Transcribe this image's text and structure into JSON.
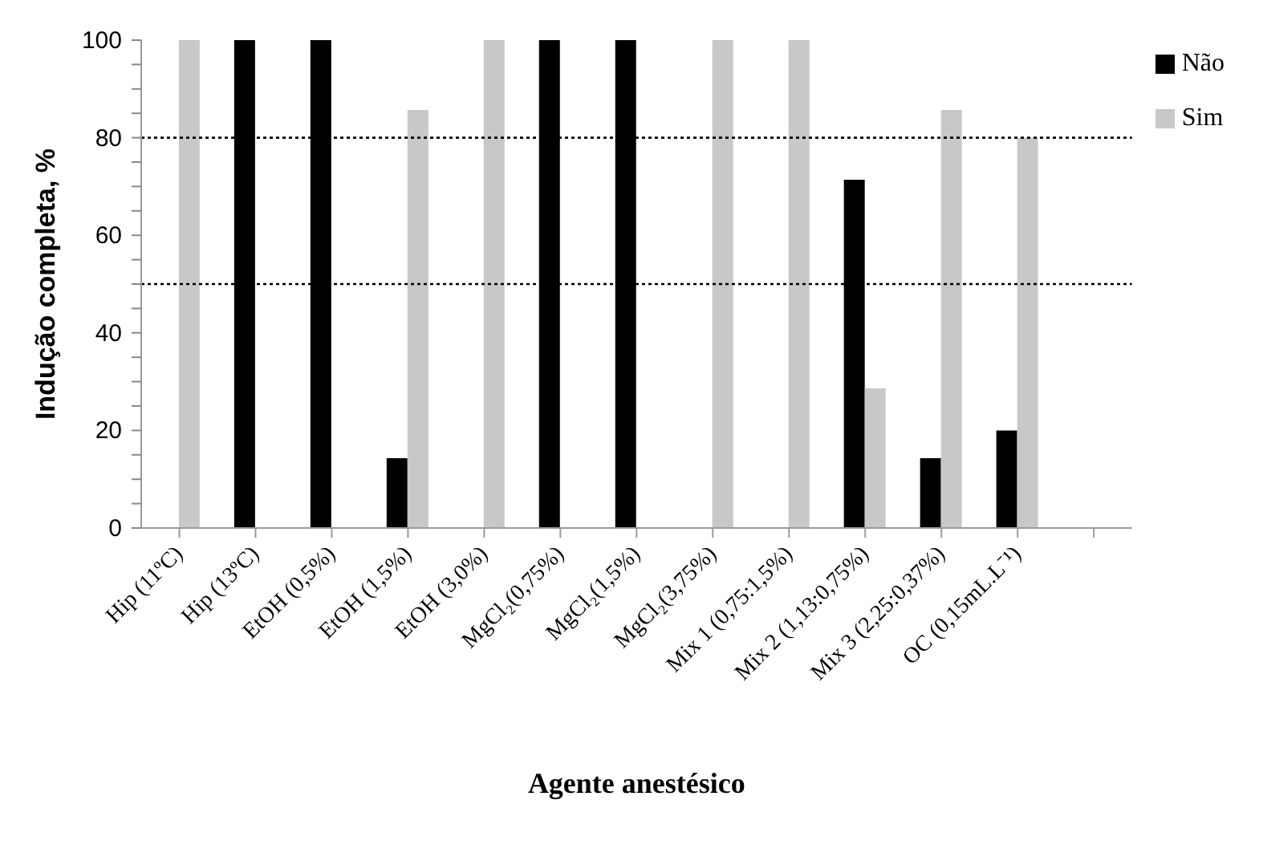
{
  "chart_data": {
    "type": "bar",
    "xlabel": "Agente anestésico",
    "ylabel": "Indução completa, %",
    "categories": [
      "Hip (11ºC)",
      "Hip (13ºC)",
      "EtOH (0,5%)",
      "EtOH (1,5%)",
      "EtOH (3,0%)",
      "MgCl₂(0,75%)",
      "MgCl₂(1,5%)",
      "MgCl₂(3,75%)",
      "Mix 1 (0,75:1,5%)",
      "Mix 2 (1,13:0,75%)",
      "Mix 3 (2,25:0,37%)",
      "OC (0,15mL.L⁻¹)",
      null
    ],
    "series": [
      {
        "name": "Não",
        "color": "#000000",
        "values": [
          0,
          100,
          100,
          14.3,
          0,
          100,
          100,
          0,
          0,
          71.4,
          14.3,
          20,
          null
        ]
      },
      {
        "name": "Sim",
        "color": "#c8c8c8",
        "values": [
          100,
          0,
          0,
          85.7,
          100,
          0,
          0,
          100,
          100,
          28.6,
          85.7,
          80,
          null
        ]
      }
    ],
    "ylim": [
      0,
      100
    ],
    "yticks": [
      0,
      {
        "value": 5,
        "label": null
      },
      {
        "value": 10,
        "label": null
      },
      {
        "value": 15,
        "label": null
      },
      20,
      {
        "value": 25,
        "label": null
      },
      {
        "value": 30,
        "label": null
      },
      {
        "value": 35,
        "label": null
      },
      40,
      {
        "value": 45,
        "label": null
      },
      {
        "value": 50,
        "label": null
      },
      {
        "value": 55,
        "label": null
      },
      60,
      {
        "value": 65,
        "label": null
      },
      {
        "value": 70,
        "label": null
      },
      {
        "value": 75,
        "label": null
      },
      80,
      {
        "value": 85,
        "label": null
      },
      {
        "value": 90,
        "label": null
      },
      {
        "value": 95,
        "label": null
      },
      100
    ],
    "ref_lines": [
      {
        "axis": "y",
        "value": 80,
        "color": "#000000",
        "line_style": "dotted"
      },
      {
        "axis": "y",
        "value": 50,
        "color": "#000000",
        "line_style": "dotted"
      }
    ],
    "grid": false,
    "legend": "top right"
  }
}
